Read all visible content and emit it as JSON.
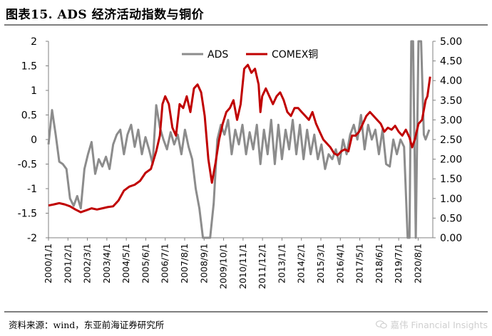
{
  "header": {
    "title": "图表15.  ADS 经济活动指数与铜价"
  },
  "footer": {
    "source": "资料来源：wind，东亚前海证券研究所",
    "watermark": "嘉伟 Financial Insights",
    "watermark_icon": "wechat-icon"
  },
  "chart_data": {
    "type": "line",
    "title": "ADS 经济活动指数与铜价",
    "xlabel": "",
    "ylabel_left": "",
    "ylabel_right": "",
    "legend_placement": "top-center",
    "grid": false,
    "y_left": {
      "range": [
        -2,
        2
      ],
      "ticks": [
        "-2",
        "-1.5",
        "-1",
        "-0.5",
        "0",
        "0.5",
        "1",
        "1.5",
        "2"
      ]
    },
    "y_right": {
      "range": [
        0,
        5
      ],
      "ticks": [
        "0.00",
        "0.50",
        "1.00",
        "1.50",
        "2.00",
        "2.50",
        "3.00",
        "3.50",
        "4.00",
        "4.50",
        "5.00"
      ]
    },
    "x_range": [
      2000.0,
      2021.4
    ],
    "x_ticks": [
      "2000/1/1",
      "2001/2/1",
      "2002/3/1",
      "2003/4/1",
      "2004/5/1",
      "2005/6/1",
      "2006/7/1",
      "2007/8/1",
      "2008/9/1",
      "2009/10/1",
      "2010/11/1",
      "2011/12/1",
      "2013/1/1",
      "2014/2/1",
      "2015/3/1",
      "2016/4/1",
      "2017/5/1",
      "2018/6/1",
      "2019/7/1",
      "2020/8/1"
    ],
    "colors": {
      "ADS": "#8c8c8c",
      "COMEX铜": "#c00000"
    },
    "series": [
      {
        "name": "ADS",
        "axis": "left",
        "x": [
          2000.0,
          2000.2,
          2000.4,
          2000.6,
          2000.8,
          2001.0,
          2001.2,
          2001.4,
          2001.6,
          2001.8,
          2002.0,
          2002.2,
          2002.4,
          2002.6,
          2002.8,
          2003.0,
          2003.2,
          2003.4,
          2003.6,
          2003.8,
          2004.0,
          2004.2,
          2004.4,
          2004.6,
          2004.8,
          2005.0,
          2005.2,
          2005.4,
          2005.6,
          2005.8,
          2006.0,
          2006.2,
          2006.4,
          2006.6,
          2006.8,
          2007.0,
          2007.2,
          2007.4,
          2007.6,
          2007.8,
          2008.0,
          2008.2,
          2008.4,
          2008.6,
          2008.75,
          2008.9,
          2009.0,
          2009.2,
          2009.4,
          2009.6,
          2009.8,
          2010.0,
          2010.2,
          2010.4,
          2010.6,
          2010.8,
          2011.0,
          2011.2,
          2011.4,
          2011.6,
          2011.8,
          2012.0,
          2012.2,
          2012.4,
          2012.6,
          2012.8,
          2013.0,
          2013.2,
          2013.4,
          2013.6,
          2013.8,
          2014.0,
          2014.2,
          2014.4,
          2014.6,
          2014.8,
          2015.0,
          2015.2,
          2015.4,
          2015.6,
          2015.8,
          2016.0,
          2016.2,
          2016.4,
          2016.6,
          2016.8,
          2017.0,
          2017.2,
          2017.4,
          2017.6,
          2017.8,
          2018.0,
          2018.2,
          2018.4,
          2018.6,
          2018.8,
          2019.0,
          2019.2,
          2019.4,
          2019.6,
          2019.8,
          2020.0,
          2020.1,
          2020.2,
          2020.3,
          2020.45,
          2020.6,
          2020.75,
          2020.9,
          2021.0,
          2021.2
        ],
        "values": [
          -0.1,
          0.6,
          0.1,
          -0.45,
          -0.5,
          -0.6,
          -1.2,
          -1.35,
          -1.15,
          -1.4,
          -0.6,
          -0.3,
          -0.05,
          -0.7,
          -0.4,
          -0.55,
          -0.35,
          -0.6,
          -0.1,
          0.1,
          0.2,
          -0.3,
          0.1,
          0.3,
          -0.15,
          0.2,
          -0.3,
          0.05,
          -0.2,
          -0.5,
          0.7,
          0.25,
          0.0,
          -0.2,
          0.15,
          -0.1,
          0.1,
          -0.3,
          0.2,
          -0.15,
          -0.4,
          -1.0,
          -1.4,
          -2.0,
          -2.0,
          -2.0,
          -2.0,
          -1.3,
          0.0,
          0.3,
          0.1,
          0.4,
          -0.3,
          0.2,
          -0.1,
          0.3,
          -0.3,
          0.15,
          -0.2,
          0.3,
          -0.5,
          0.2,
          -0.3,
          0.4,
          -0.5,
          0.3,
          -0.4,
          0.2,
          -0.2,
          0.4,
          -0.3,
          0.3,
          -0.4,
          0.2,
          -0.3,
          0.1,
          -0.4,
          -0.1,
          -0.6,
          -0.3,
          -0.4,
          -0.2,
          -0.5,
          0.0,
          -0.3,
          0.1,
          0.3,
          0.0,
          0.5,
          -0.2,
          0.3,
          0.0,
          0.2,
          -0.3,
          0.2,
          -0.5,
          -0.55,
          0.0,
          -0.3,
          0.0,
          -0.15,
          -2.0,
          -2.0,
          2.0,
          2.0,
          -2.0,
          2.0,
          2.0,
          0.1,
          0.0,
          0.2
        ]
      },
      {
        "name": "COMEX铜",
        "axis": "right",
        "x": [
          2000.0,
          2000.3,
          2000.6,
          2000.9,
          2001.2,
          2001.5,
          2001.8,
          2002.1,
          2002.4,
          2002.7,
          2003.0,
          2003.3,
          2003.6,
          2003.9,
          2004.2,
          2004.5,
          2004.8,
          2005.1,
          2005.4,
          2005.7,
          2006.0,
          2006.2,
          2006.35,
          2006.5,
          2006.7,
          2006.9,
          2007.1,
          2007.3,
          2007.5,
          2007.7,
          2007.9,
          2008.1,
          2008.3,
          2008.5,
          2008.7,
          2008.9,
          2009.1,
          2009.3,
          2009.5,
          2009.7,
          2009.9,
          2010.1,
          2010.3,
          2010.5,
          2010.7,
          2010.9,
          2011.1,
          2011.3,
          2011.5,
          2011.7,
          2011.8,
          2011.9,
          2012.1,
          2012.3,
          2012.5,
          2012.7,
          2012.9,
          2013.1,
          2013.3,
          2013.5,
          2013.7,
          2013.9,
          2014.1,
          2014.3,
          2014.5,
          2014.7,
          2014.9,
          2015.1,
          2015.3,
          2015.5,
          2015.7,
          2015.9,
          2016.1,
          2016.3,
          2016.5,
          2016.7,
          2016.9,
          2017.1,
          2017.3,
          2017.5,
          2017.7,
          2017.9,
          2018.1,
          2018.3,
          2018.5,
          2018.7,
          2018.9,
          2019.1,
          2019.3,
          2019.5,
          2019.7,
          2019.9,
          2020.1,
          2020.25,
          2020.4,
          2020.6,
          2020.8,
          2021.0,
          2021.1,
          2021.25
        ],
        "values": [
          0.82,
          0.85,
          0.88,
          0.85,
          0.8,
          0.72,
          0.65,
          0.7,
          0.75,
          0.72,
          0.75,
          0.78,
          0.8,
          0.95,
          1.2,
          1.3,
          1.35,
          1.45,
          1.65,
          1.75,
          2.2,
          2.6,
          3.4,
          3.6,
          3.4,
          2.8,
          2.6,
          3.4,
          3.3,
          3.6,
          3.2,
          3.8,
          3.9,
          3.7,
          3.1,
          2.0,
          1.4,
          1.9,
          2.5,
          2.9,
          3.2,
          3.3,
          3.5,
          3.0,
          3.4,
          4.3,
          4.4,
          4.2,
          4.3,
          3.9,
          3.2,
          3.6,
          3.8,
          3.6,
          3.4,
          3.6,
          3.7,
          3.5,
          3.2,
          3.1,
          3.3,
          3.3,
          3.2,
          3.1,
          3.0,
          3.2,
          2.9,
          2.7,
          2.5,
          2.4,
          2.3,
          2.15,
          2.1,
          2.2,
          2.25,
          2.2,
          2.6,
          2.6,
          2.7,
          2.9,
          3.1,
          3.2,
          3.1,
          3.0,
          2.9,
          2.7,
          2.8,
          2.75,
          2.85,
          2.7,
          2.6,
          2.75,
          2.55,
          2.3,
          2.5,
          2.9,
          3.0,
          3.5,
          3.6,
          4.1
        ]
      }
    ]
  }
}
